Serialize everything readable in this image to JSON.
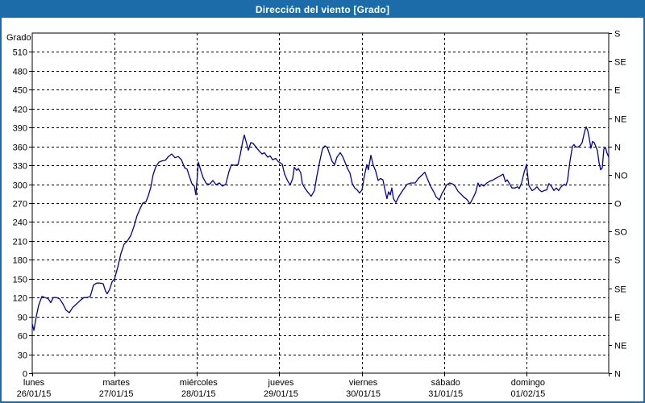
{
  "title": "Dirección del viento [Grado]",
  "colors": {
    "title_bar": "#1B6CA8",
    "title_text": "#FFFFFF",
    "frame": "#1B6CA8",
    "plot_border": "#000000",
    "grid": "#000000",
    "series": "#0000A0",
    "text": "#000000",
    "background": "#FFFFFF"
  },
  "chart_data": {
    "type": "line",
    "title": "Dirección del viento [Grado]",
    "grid": "dashed",
    "x_axis": {
      "range_days": 7,
      "days": [
        {
          "name": "lunes",
          "date": "26/01/15"
        },
        {
          "name": "martes",
          "date": "27/01/15"
        },
        {
          "name": "miércoles",
          "date": "28/01/15"
        },
        {
          "name": "jueves",
          "date": "29/01/15"
        },
        {
          "name": "viernes",
          "date": "30/01/15"
        },
        {
          "name": "sábado",
          "date": "31/01/15"
        },
        {
          "name": "domingo",
          "date": "01/02/15"
        }
      ]
    },
    "y_left": {
      "label": "Grado",
      "min": 0,
      "max": 540,
      "step": 30,
      "ticks": [
        510,
        480,
        450,
        420,
        390,
        360,
        330,
        300,
        270,
        240,
        210,
        180,
        150,
        120,
        90,
        60,
        30,
        0
      ]
    },
    "y_right": {
      "ticks": [
        {
          "label": "S",
          "value": 540
        },
        {
          "label": "SE",
          "value": 495
        },
        {
          "label": "E",
          "value": 450
        },
        {
          "label": "NE",
          "value": 405
        },
        {
          "label": "N",
          "value": 360
        },
        {
          "label": "NO",
          "value": 315
        },
        {
          "label": "O",
          "value": 270
        },
        {
          "label": "SO",
          "value": 225
        },
        {
          "label": "S",
          "value": 180
        },
        {
          "label": "SE",
          "value": 135
        },
        {
          "label": "E",
          "value": 90
        },
        {
          "label": "NE",
          "value": 45
        },
        {
          "label": "N",
          "value": 0
        }
      ]
    },
    "series": [
      {
        "name": "Dirección del viento",
        "color": "#0000A0",
        "points": [
          [
            0,
            78
          ],
          [
            0.02,
            68
          ],
          [
            0.049,
            90
          ],
          [
            0.078,
            108
          ],
          [
            0.117,
            122
          ],
          [
            0.157,
            120
          ],
          [
            0.196,
            118
          ],
          [
            0.225,
            112
          ],
          [
            0.255,
            120
          ],
          [
            0.294,
            120
          ],
          [
            0.333,
            118
          ],
          [
            0.372,
            110
          ],
          [
            0.411,
            100
          ],
          [
            0.45,
            96
          ],
          [
            0.49,
            104
          ],
          [
            0.538,
            110
          ],
          [
            0.587,
            116
          ],
          [
            0.627,
            120
          ],
          [
            0.666,
            120
          ],
          [
            0.705,
            122
          ],
          [
            0.744,
            140
          ],
          [
            0.783,
            143
          ],
          [
            0.822,
            143
          ],
          [
            0.861,
            142
          ],
          [
            0.891,
            130
          ],
          [
            0.91,
            126
          ],
          [
            0.94,
            133
          ],
          [
            0.969,
            145
          ],
          [
            1,
            150
          ],
          [
            1.038,
            168
          ],
          [
            1.077,
            190
          ],
          [
            1.116,
            205
          ],
          [
            1.155,
            210
          ],
          [
            1.194,
            218
          ],
          [
            1.233,
            232
          ],
          [
            1.273,
            250
          ],
          [
            1.312,
            262
          ],
          [
            1.341,
            270
          ],
          [
            1.38,
            272
          ],
          [
            1.41,
            282
          ],
          [
            1.439,
            295
          ],
          [
            1.468,
            315
          ],
          [
            1.498,
            327
          ],
          [
            1.537,
            335
          ],
          [
            1.576,
            337
          ],
          [
            1.615,
            338
          ],
          [
            1.654,
            344
          ],
          [
            1.694,
            348
          ],
          [
            1.733,
            342
          ],
          [
            1.772,
            344
          ],
          [
            1.811,
            339
          ],
          [
            1.85,
            326
          ],
          [
            1.88,
            324
          ],
          [
            1.909,
            312
          ],
          [
            1.938,
            301
          ],
          [
            1.968,
            297
          ],
          [
            1.987,
            283
          ],
          [
            2.017,
            335
          ],
          [
            2.046,
            322
          ],
          [
            2.076,
            310
          ],
          [
            2.115,
            301
          ],
          [
            2.154,
            300
          ],
          [
            2.193,
            306
          ],
          [
            2.232,
            299
          ],
          [
            2.271,
            302
          ],
          [
            2.31,
            297
          ],
          [
            2.35,
            300
          ],
          [
            2.389,
            320
          ],
          [
            2.418,
            331
          ],
          [
            2.457,
            330
          ],
          [
            2.497,
            331
          ],
          [
            2.526,
            347
          ],
          [
            2.555,
            368
          ],
          [
            2.575,
            378
          ],
          [
            2.604,
            364
          ],
          [
            2.624,
            354
          ],
          [
            2.653,
            366
          ],
          [
            2.682,
            365
          ],
          [
            2.722,
            358
          ],
          [
            2.761,
            352
          ],
          [
            2.79,
            348
          ],
          [
            2.82,
            350
          ],
          [
            2.859,
            343
          ],
          [
            2.888,
            345
          ],
          [
            2.918,
            339
          ],
          [
            2.957,
            341
          ],
          [
            2.986,
            336
          ],
          [
            3.035,
            332
          ],
          [
            3.064,
            316
          ],
          [
            3.103,
            305
          ],
          [
            3.133,
            299
          ],
          [
            3.162,
            309
          ],
          [
            3.182,
            327
          ],
          [
            3.211,
            322
          ],
          [
            3.231,
            325
          ],
          [
            3.26,
            318
          ],
          [
            3.28,
            301
          ],
          [
            3.309,
            294
          ],
          [
            3.348,
            287
          ],
          [
            3.387,
            281
          ],
          [
            3.427,
            290
          ],
          [
            3.456,
            313
          ],
          [
            3.495,
            339
          ],
          [
            3.524,
            356
          ],
          [
            3.554,
            361
          ],
          [
            3.583,
            358
          ],
          [
            3.613,
            347
          ],
          [
            3.642,
            336
          ],
          [
            3.671,
            331
          ],
          [
            3.7,
            343
          ],
          [
            3.74,
            350
          ],
          [
            3.769,
            344
          ],
          [
            3.798,
            335
          ],
          [
            3.828,
            325
          ],
          [
            3.857,
            318
          ],
          [
            3.886,
            301
          ],
          [
            3.916,
            294
          ],
          [
            3.945,
            291
          ],
          [
            3.974,
            286
          ],
          [
            4.004,
            291
          ],
          [
            4.033,
            313
          ],
          [
            4.063,
            331
          ],
          [
            4.082,
            323
          ],
          [
            4.112,
            346
          ],
          [
            4.141,
            330
          ],
          [
            4.17,
            321
          ],
          [
            4.2,
            306
          ],
          [
            4.229,
            309
          ],
          [
            4.258,
            307
          ],
          [
            4.288,
            288
          ],
          [
            4.307,
            277
          ],
          [
            4.327,
            288
          ],
          [
            4.347,
            283
          ],
          [
            4.366,
            294
          ],
          [
            4.386,
            277
          ],
          [
            4.415,
            271
          ],
          [
            4.454,
            281
          ],
          [
            4.503,
            291
          ],
          [
            4.552,
            300
          ],
          [
            4.601,
            302
          ],
          [
            4.65,
            302
          ],
          [
            4.689,
            309
          ],
          [
            4.728,
            314
          ],
          [
            4.767,
            319
          ],
          [
            4.797,
            309
          ],
          [
            4.836,
            297
          ],
          [
            4.875,
            288
          ],
          [
            4.904,
            280
          ],
          [
            4.944,
            275
          ],
          [
            4.973,
            285
          ],
          [
            5.002,
            291
          ],
          [
            5.032,
            299
          ],
          [
            5.071,
            302
          ],
          [
            5.11,
            300
          ],
          [
            5.139,
            296
          ],
          [
            5.169,
            289
          ],
          [
            5.208,
            284
          ],
          [
            5.237,
            280
          ],
          [
            5.276,
            276
          ],
          [
            5.315,
            269
          ],
          [
            5.355,
            279
          ],
          [
            5.384,
            287
          ],
          [
            5.413,
            302
          ],
          [
            5.433,
            296
          ],
          [
            5.452,
            300
          ],
          [
            5.482,
            297
          ],
          [
            5.521,
            302
          ],
          [
            5.56,
            305
          ],
          [
            5.599,
            307
          ],
          [
            5.638,
            310
          ],
          [
            5.678,
            313
          ],
          [
            5.717,
            316
          ],
          [
            5.746,
            304
          ],
          [
            5.766,
            307
          ],
          [
            5.795,
            301
          ],
          [
            5.825,
            294
          ],
          [
            5.864,
            294
          ],
          [
            5.893,
            296
          ],
          [
            5.913,
            293
          ],
          [
            5.942,
            302
          ],
          [
            5.971,
            318
          ],
          [
            6.001,
            331
          ],
          [
            6.03,
            298
          ],
          [
            6.069,
            290
          ],
          [
            6.099,
            292
          ],
          [
            6.128,
            296
          ],
          [
            6.157,
            291
          ],
          [
            6.187,
            288
          ],
          [
            6.216,
            290
          ],
          [
            6.246,
            291
          ],
          [
            6.275,
            301
          ],
          [
            6.304,
            297
          ],
          [
            6.334,
            290
          ],
          [
            6.363,
            294
          ],
          [
            6.392,
            290
          ],
          [
            6.422,
            296
          ],
          [
            6.461,
            300
          ],
          [
            6.481,
            298
          ],
          [
            6.5,
            306
          ],
          [
            6.53,
            337
          ],
          [
            6.559,
            360
          ],
          [
            6.579,
            363
          ],
          [
            6.598,
            359
          ],
          [
            6.628,
            359
          ],
          [
            6.657,
            362
          ],
          [
            6.677,
            366
          ],
          [
            6.706,
            383
          ],
          [
            6.726,
            391
          ],
          [
            6.745,
            385
          ],
          [
            6.765,
            372
          ],
          [
            6.784,
            357
          ],
          [
            6.804,
            368
          ],
          [
            6.824,
            366
          ],
          [
            6.843,
            360
          ],
          [
            6.863,
            353
          ],
          [
            6.882,
            335
          ],
          [
            6.902,
            323
          ],
          [
            6.922,
            326
          ],
          [
            6.941,
            356
          ],
          [
            6.961,
            358
          ],
          [
            6.98,
            349
          ],
          [
            7,
            343
          ]
        ]
      }
    ]
  }
}
